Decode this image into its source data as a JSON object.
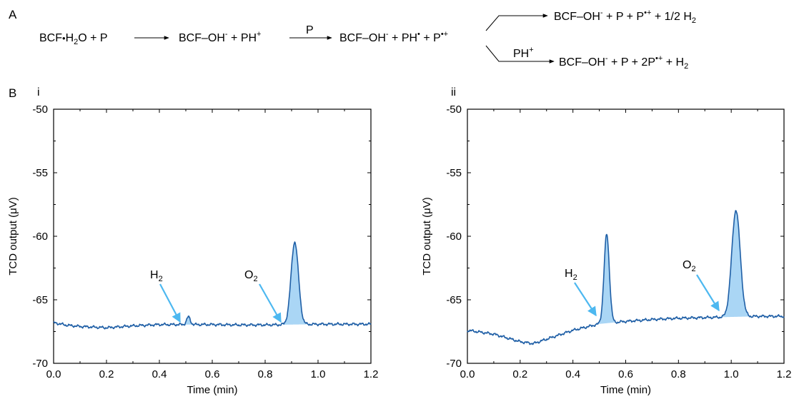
{
  "panel_labels": {
    "a": "A",
    "b": "B"
  },
  "scheme": {
    "step1_left": [
      "BCF",
      "•",
      "H",
      "2",
      "O + P"
    ],
    "step1_right": [
      "BCF",
      "–",
      "OH",
      "-",
      " + PH",
      "+"
    ],
    "step2_over_arrow": "P",
    "step2_right": [
      "BCF",
      "–",
      "OH",
      "-",
      " + PH",
      "•",
      " + P",
      "•+"
    ],
    "branch_top": [
      "BCF",
      "–",
      "OH",
      "-",
      " + P + P",
      "•+",
      " + 1/2 H",
      "2"
    ],
    "branch_bottom_over_arrow": [
      "PH",
      "+"
    ],
    "branch_bottom": [
      "BCF",
      "–",
      "OH",
      "-",
      " + P + 2P",
      "•+",
      " + H",
      "2"
    ]
  },
  "colors": {
    "trace": "#1f5fa6",
    "fill": "#aad6f5",
    "arrow": "#4db8f0",
    "axis": "#000000"
  },
  "chart_data": [
    {
      "type": "line",
      "panel": "i",
      "xlabel": "Time (min)",
      "ylabel": "TCD output (μV)",
      "xlim": [
        0.0,
        1.2
      ],
      "ylim": [
        -70,
        -50
      ],
      "xticks": [
        0.0,
        0.2,
        0.4,
        0.6,
        0.8,
        1.0,
        1.2
      ],
      "yticks": [
        -50,
        -55,
        -60,
        -65,
        -70
      ],
      "baseline_points": [
        [
          0.0,
          -66.8
        ],
        [
          0.05,
          -67.0
        ],
        [
          0.1,
          -67.1
        ],
        [
          0.2,
          -67.2
        ],
        [
          0.3,
          -67.05
        ],
        [
          0.4,
          -66.95
        ],
        [
          0.5,
          -66.95
        ],
        [
          0.6,
          -66.95
        ],
        [
          0.7,
          -66.98
        ],
        [
          0.8,
          -66.98
        ],
        [
          0.9,
          -66.95
        ],
        [
          1.0,
          -66.92
        ],
        [
          1.1,
          -66.92
        ],
        [
          1.2,
          -66.92
        ]
      ],
      "peaks": [
        {
          "label": "H",
          "sub": "2",
          "center": 0.51,
          "height": 0.6,
          "width": 0.007
        },
        {
          "label": "O",
          "sub": "2",
          "center": 0.912,
          "height": 6.5,
          "width": 0.014
        }
      ]
    },
    {
      "type": "line",
      "panel": "ii",
      "xlabel": "Time (min)",
      "ylabel": "TCD output (μV)",
      "xlim": [
        0.0,
        1.2
      ],
      "ylim": [
        -70,
        -50
      ],
      "xticks": [
        0.0,
        0.2,
        0.4,
        0.6,
        0.8,
        1.0,
        1.2
      ],
      "yticks": [
        -50,
        -55,
        -60,
        -65,
        -70
      ],
      "baseline_points": [
        [
          0.0,
          -67.4
        ],
        [
          0.1,
          -67.7
        ],
        [
          0.2,
          -68.3
        ],
        [
          0.25,
          -68.45
        ],
        [
          0.3,
          -68.1
        ],
        [
          0.4,
          -67.4
        ],
        [
          0.5,
          -66.9
        ],
        [
          0.6,
          -66.7
        ],
        [
          0.7,
          -66.55
        ],
        [
          0.8,
          -66.45
        ],
        [
          0.9,
          -66.4
        ],
        [
          1.0,
          -66.35
        ],
        [
          1.1,
          -66.3
        ],
        [
          1.2,
          -66.3
        ]
      ],
      "peaks": [
        {
          "label": "H",
          "sub": "2",
          "center": 0.528,
          "height": 7.0,
          "width": 0.01
        },
        {
          "label": "O",
          "sub": "2",
          "center": 1.018,
          "height": 8.4,
          "width": 0.016
        }
      ]
    }
  ]
}
